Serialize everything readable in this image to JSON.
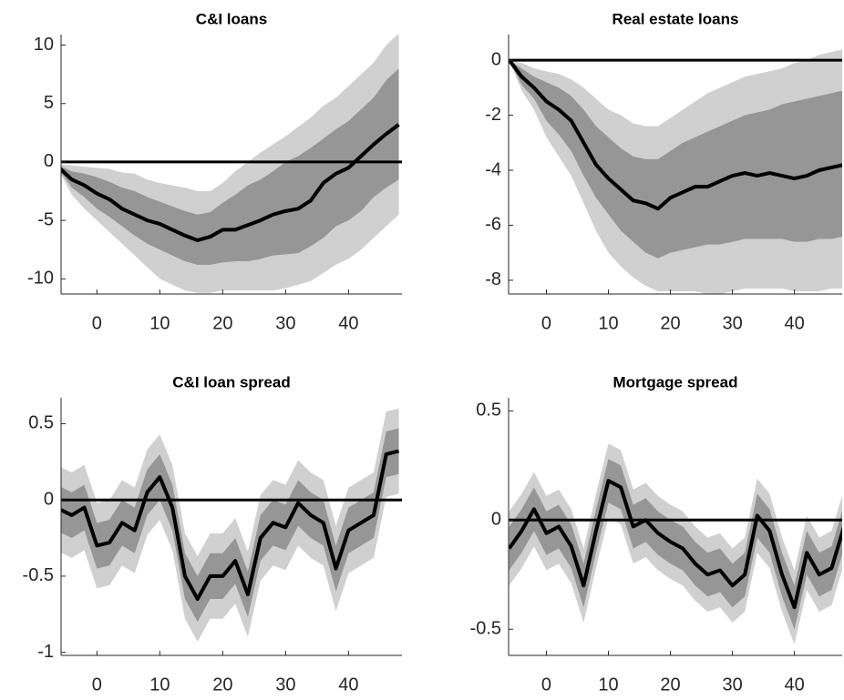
{
  "chart_data": [
    {
      "type": "band-line",
      "title": "C&I loans",
      "x": [
        -6,
        -4,
        -2,
        0,
        2,
        4,
        6,
        8,
        10,
        12,
        14,
        16,
        18,
        20,
        22,
        24,
        26,
        28,
        30,
        32,
        34,
        36,
        38,
        40,
        42,
        44,
        46,
        48
      ],
      "values": [
        -0.5,
        -1.5,
        -2,
        -2.7,
        -3.2,
        -4,
        -4.5,
        -5,
        -5.3,
        -5.8,
        -6.3,
        -6.7,
        -6.4,
        -5.8,
        -5.8,
        -5.4,
        -5,
        -4.5,
        -4.2,
        -4,
        -3.3,
        -1.8,
        -1,
        -0.5,
        0.5,
        1.5,
        2.4,
        3.2
      ],
      "color": "#000000",
      "bands": [
        {
          "color": "#d0d0d0",
          "upper": [
            -0.2,
            -0.3,
            -0.4,
            -0.5,
            -0.6,
            -0.9,
            -1,
            -1.5,
            -1.8,
            -2,
            -2.2,
            -2.5,
            -2.5,
            -1.8,
            -0.8,
            0,
            0.8,
            1.5,
            2.2,
            3,
            3.8,
            4.8,
            5.5,
            6.5,
            7.5,
            8.5,
            10,
            11
          ],
          "lower": [
            -0.8,
            -2.8,
            -4,
            -5,
            -6,
            -7,
            -8,
            -9,
            -10,
            -10.5,
            -11,
            -11.2,
            -11.2,
            -11,
            -11,
            -11,
            -11,
            -11,
            -10.8,
            -10.5,
            -10.2,
            -9.5,
            -8.8,
            -8.3,
            -7.5,
            -6.5,
            -5.5,
            -4.5
          ]
        },
        {
          "color": "#969696",
          "upper": [
            -0.3,
            -0.8,
            -1,
            -1.3,
            -1.7,
            -2.2,
            -2.5,
            -3,
            -3.4,
            -3.8,
            -4.2,
            -4.5,
            -4.3,
            -3.5,
            -2.8,
            -2,
            -1.5,
            -0.8,
            0,
            0.5,
            1.2,
            2,
            2.8,
            3.5,
            4.5,
            5.5,
            7,
            8
          ],
          "lower": [
            -0.7,
            -2.2,
            -3,
            -4,
            -4.7,
            -5.5,
            -6.3,
            -7,
            -7.5,
            -8,
            -8.5,
            -8.8,
            -8.8,
            -8.6,
            -8.5,
            -8.5,
            -8.3,
            -8,
            -7.9,
            -7.8,
            -7.2,
            -6.5,
            -5.5,
            -5,
            -4.2,
            -3,
            -2.2,
            -1.5
          ]
        }
      ],
      "reference_line": 0,
      "xlim": [
        -5.7,
        48.5
      ],
      "ylim": [
        -11.3,
        10.9
      ],
      "xticks": [
        0,
        10,
        20,
        30,
        40
      ],
      "yticks": [
        -10,
        -5,
        0,
        5,
        10
      ]
    },
    {
      "type": "band-line",
      "title": "Real estate loans",
      "x": [
        -6,
        -4,
        -2,
        0,
        2,
        4,
        6,
        8,
        10,
        12,
        14,
        16,
        18,
        20,
        22,
        24,
        26,
        28,
        30,
        32,
        34,
        36,
        38,
        40,
        42,
        44,
        46,
        48
      ],
      "values": [
        0,
        -0.6,
        -1,
        -1.5,
        -1.8,
        -2.2,
        -3,
        -3.8,
        -4.3,
        -4.7,
        -5.1,
        -5.2,
        -5.4,
        -5,
        -4.8,
        -4.6,
        -4.6,
        -4.4,
        -4.2,
        -4.1,
        -4.2,
        -4.1,
        -4.2,
        -4.3,
        -4.2,
        -4,
        -3.9,
        -3.8
      ],
      "color": "#000000",
      "bands": [
        {
          "color": "#d0d0d0",
          "upper": [
            0,
            -0.1,
            -0.3,
            -0.4,
            -0.5,
            -0.7,
            -1,
            -1.4,
            -1.8,
            -2,
            -2.3,
            -2.4,
            -2.4,
            -2.1,
            -1.8,
            -1.5,
            -1.2,
            -1,
            -0.8,
            -0.6,
            -0.5,
            -0.4,
            -0.3,
            -0.1,
            0,
            0.2,
            0.3,
            0.4
          ],
          "lower": [
            0,
            -1.1,
            -1.8,
            -2.8,
            -3.5,
            -4.2,
            -5.2,
            -6.2,
            -7,
            -7.5,
            -7.9,
            -8.2,
            -8.4,
            -8.4,
            -8.4,
            -8.4,
            -8.5,
            -8.5,
            -8.4,
            -8.3,
            -8.3,
            -8.3,
            -8.3,
            -8.4,
            -8.4,
            -8.4,
            -8.3,
            -8.3
          ]
        },
        {
          "color": "#969696",
          "upper": [
            0,
            -0.3,
            -0.6,
            -0.8,
            -1,
            -1.3,
            -1.8,
            -2.4,
            -2.8,
            -3.2,
            -3.5,
            -3.6,
            -3.6,
            -3.3,
            -3,
            -2.8,
            -2.6,
            -2.4,
            -2.2,
            -2,
            -1.9,
            -1.8,
            -1.6,
            -1.5,
            -1.4,
            -1.3,
            -1.2,
            -1.1
          ],
          "lower": [
            0,
            -0.9,
            -1.4,
            -2.2,
            -2.7,
            -3.3,
            -4.2,
            -5,
            -5.6,
            -6.2,
            -6.6,
            -7,
            -7.2,
            -7,
            -6.9,
            -6.8,
            -6.7,
            -6.7,
            -6.6,
            -6.5,
            -6.5,
            -6.5,
            -6.5,
            -6.6,
            -6.6,
            -6.5,
            -6.5,
            -6.4
          ]
        }
      ],
      "reference_line": 0,
      "xlim": [
        -6.1,
        47.7
      ],
      "ylim": [
        -8.5,
        0.93
      ],
      "xticks": [
        0,
        10,
        20,
        30,
        40
      ],
      "yticks": [
        -8,
        -6,
        -4,
        -2,
        0
      ]
    },
    {
      "type": "band-line",
      "title": "C&I loan spread",
      "x": [
        -6,
        -4,
        -2,
        0,
        2,
        4,
        6,
        8,
        10,
        12,
        14,
        16,
        18,
        20,
        22,
        24,
        26,
        28,
        30,
        32,
        34,
        36,
        38,
        40,
        42,
        44,
        46,
        48
      ],
      "values": [
        -0.06,
        -0.1,
        -0.05,
        -0.3,
        -0.28,
        -0.15,
        -0.2,
        0.05,
        0.15,
        -0.05,
        -0.5,
        -0.65,
        -0.5,
        -0.5,
        -0.4,
        -0.62,
        -0.25,
        -0.15,
        -0.18,
        -0.02,
        -0.1,
        -0.15,
        -0.45,
        -0.2,
        -0.15,
        -0.1,
        0.3,
        0.32
      ],
      "color": "#000000",
      "bands": [
        {
          "color": "#d0d0d0",
          "upper": [
            0.22,
            0.18,
            0.23,
            -0.02,
            0,
            0.13,
            0.08,
            0.33,
            0.43,
            0.23,
            -0.22,
            -0.37,
            -0.22,
            -0.22,
            -0.12,
            -0.34,
            0.03,
            0.13,
            0.1,
            0.26,
            0.18,
            0.13,
            -0.17,
            0.08,
            0.13,
            0.18,
            0.58,
            0.6
          ],
          "lower": [
            -0.34,
            -0.38,
            -0.33,
            -0.58,
            -0.56,
            -0.43,
            -0.48,
            -0.23,
            -0.13,
            -0.33,
            -0.78,
            -0.93,
            -0.78,
            -0.78,
            -0.68,
            -0.9,
            -0.53,
            -0.43,
            -0.46,
            -0.3,
            -0.38,
            -0.43,
            -0.73,
            -0.48,
            -0.43,
            -0.38,
            0.02,
            0.04
          ]
        },
        {
          "color": "#969696",
          "upper": [
            0.09,
            0.05,
            0.1,
            -0.15,
            -0.13,
            0,
            -0.05,
            0.2,
            0.3,
            0.1,
            -0.35,
            -0.5,
            -0.35,
            -0.35,
            -0.25,
            -0.47,
            -0.1,
            0,
            -0.03,
            0.13,
            0.05,
            0,
            -0.3,
            -0.05,
            0,
            0.05,
            0.45,
            0.47
          ],
          "lower": [
            -0.21,
            -0.25,
            -0.2,
            -0.45,
            -0.43,
            -0.3,
            -0.35,
            -0.1,
            0,
            -0.2,
            -0.65,
            -0.8,
            -0.65,
            -0.65,
            -0.55,
            -0.77,
            -0.4,
            -0.3,
            -0.33,
            -0.17,
            -0.25,
            -0.3,
            -0.6,
            -0.35,
            -0.3,
            -0.25,
            0.15,
            0.17
          ]
        }
      ],
      "reference_line": 0,
      "xlim": [
        -5.7,
        48.5
      ],
      "ylim": [
        -1.02,
        0.67
      ],
      "xticks": [
        0,
        10,
        20,
        30,
        40
      ],
      "yticks": [
        -1,
        -0.5,
        0,
        0.5
      ]
    },
    {
      "type": "band-line",
      "title": "Mortgage spread",
      "x": [
        -6,
        -4,
        -2,
        0,
        2,
        4,
        6,
        8,
        10,
        12,
        14,
        16,
        18,
        20,
        22,
        24,
        26,
        28,
        30,
        32,
        34,
        36,
        38,
        40,
        42,
        44,
        46,
        48
      ],
      "values": [
        -0.13,
        -0.05,
        0.05,
        -0.06,
        -0.03,
        -0.12,
        -0.3,
        -0.05,
        0.18,
        0.15,
        -0.03,
        0,
        -0.06,
        -0.1,
        -0.13,
        -0.2,
        -0.25,
        -0.23,
        -0.3,
        -0.25,
        0.02,
        -0.05,
        -0.25,
        -0.4,
        -0.15,
        -0.25,
        -0.22,
        -0.03
      ],
      "color": "#000000",
      "bands": [
        {
          "color": "#d0d0d0",
          "upper": [
            0.04,
            0.12,
            0.22,
            0.11,
            0.14,
            0.05,
            -0.13,
            0.12,
            0.35,
            0.32,
            0.14,
            0.17,
            0.11,
            0.07,
            0.04,
            -0.03,
            -0.08,
            -0.06,
            -0.13,
            -0.08,
            0.19,
            0.12,
            -0.08,
            -0.23,
            0.02,
            -0.08,
            -0.05,
            0.14
          ],
          "lower": [
            -0.3,
            -0.22,
            -0.12,
            -0.23,
            -0.2,
            -0.29,
            -0.47,
            -0.22,
            0.01,
            -0.02,
            -0.2,
            -0.17,
            -0.23,
            -0.27,
            -0.3,
            -0.37,
            -0.42,
            -0.4,
            -0.47,
            -0.42,
            -0.15,
            -0.22,
            -0.42,
            -0.57,
            -0.32,
            -0.42,
            -0.39,
            -0.2
          ]
        },
        {
          "color": "#969696",
          "upper": [
            -0.03,
            0.05,
            0.15,
            0.04,
            0.07,
            -0.02,
            -0.2,
            0.05,
            0.28,
            0.25,
            0.07,
            0.1,
            0.04,
            0,
            -0.03,
            -0.1,
            -0.15,
            -0.13,
            -0.2,
            -0.15,
            0.12,
            0.05,
            -0.15,
            -0.3,
            -0.05,
            -0.15,
            -0.12,
            0.07
          ],
          "lower": [
            -0.23,
            -0.15,
            -0.05,
            -0.16,
            -0.13,
            -0.22,
            -0.4,
            -0.15,
            0.08,
            0.05,
            -0.13,
            -0.1,
            -0.16,
            -0.2,
            -0.23,
            -0.3,
            -0.35,
            -0.33,
            -0.4,
            -0.35,
            -0.08,
            -0.15,
            -0.35,
            -0.5,
            -0.25,
            -0.35,
            -0.32,
            -0.13
          ]
        }
      ],
      "reference_line": 0,
      "xlim": [
        -6.1,
        47.7
      ],
      "ylim": [
        -0.62,
        0.56
      ],
      "xticks": [
        0,
        10,
        20,
        30,
        40
      ],
      "yticks": [
        -0.5,
        0,
        0.5
      ]
    }
  ]
}
